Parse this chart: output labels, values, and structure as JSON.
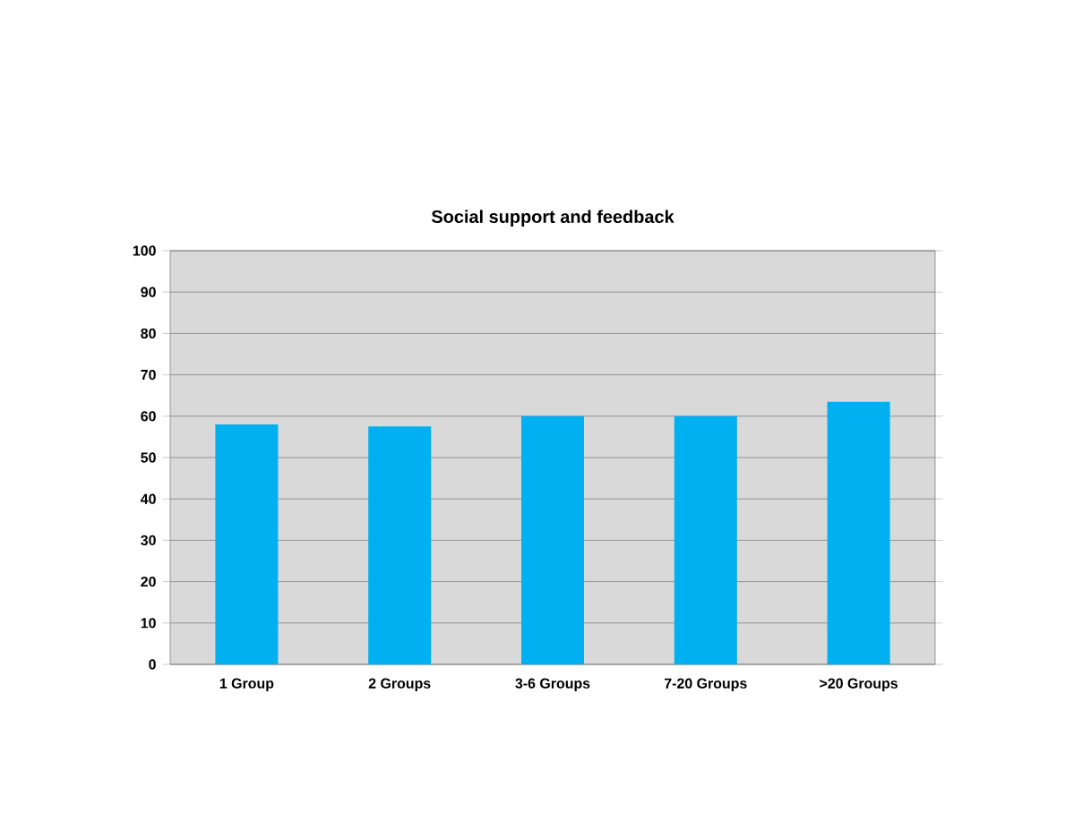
{
  "chart_data": {
    "type": "bar",
    "title": "Social support and feedback",
    "categories": [
      "1 Group",
      "2 Groups",
      "3-6 Groups",
      "7-20 Groups",
      ">20 Groups"
    ],
    "values": [
      58,
      57.5,
      60,
      60,
      63.5
    ],
    "color": "#00b0f0",
    "ylim": [
      0,
      100
    ],
    "yticks": [
      0,
      10,
      20,
      30,
      40,
      50,
      60,
      70,
      80,
      90,
      100
    ],
    "grid": "y"
  }
}
